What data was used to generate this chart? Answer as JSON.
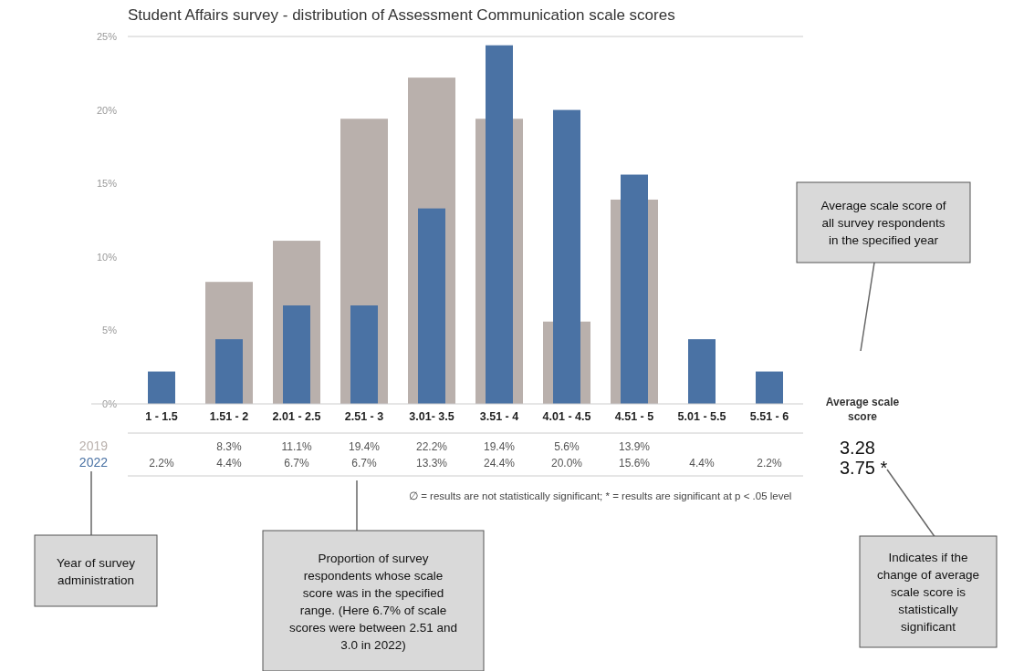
{
  "chart_data": {
    "type": "bar",
    "title": "Student Affairs survey - distribution of Assessment Communication scale scores",
    "categories": [
      "1 - 1.5",
      "1.51 - 2",
      "2.01 - 2.5",
      "2.51 - 3",
      "3.01- 3.5",
      "3.51 - 4",
      "4.01 - 4.5",
      "4.51 - 5",
      "5.01 - 5.5",
      "5.51 - 6"
    ],
    "series": [
      {
        "name": "2019",
        "color": "#b9b0ac",
        "values": [
          null,
          8.3,
          11.1,
          19.4,
          22.2,
          19.4,
          5.6,
          13.9,
          null,
          null
        ],
        "value_labels": [
          null,
          "8.3%",
          "11.1%",
          "19.4%",
          "22.2%",
          "19.4%",
          "5.6%",
          "13.9%",
          null,
          null
        ]
      },
      {
        "name": "2022",
        "color": "#4a72a4",
        "values": [
          2.2,
          4.4,
          6.7,
          6.7,
          13.3,
          24.4,
          20.0,
          15.6,
          4.4,
          2.2
        ],
        "value_labels": [
          "2.2%",
          "4.4%",
          "6.7%",
          "6.7%",
          "13.3%",
          "24.4%",
          "20.0%",
          "15.6%",
          "4.4%",
          "2.2%"
        ]
      }
    ],
    "ylim": [
      0,
      25
    ],
    "yticks": [
      {
        "value": 0,
        "label": "0%"
      },
      {
        "value": 5,
        "label": "5%"
      },
      {
        "value": 10,
        "label": "10%"
      },
      {
        "value": 15,
        "label": "15%"
      },
      {
        "value": 20,
        "label": "20%"
      },
      {
        "value": 25,
        "label": "25%"
      }
    ],
    "annotations": [
      "Average scale score",
      "3.28",
      "3.75 *",
      "∅ = results are not statistically significant;  * = results are significant at p < .05 level",
      "Average scale score of all survey respondents in the specified year",
      "Year of survey administration",
      "Proportion of survey respondents whose scale score was in the specified range.  (Here 6.7% of scale scores were between 2.51 and 3.0 in 2022)",
      "Indicates if the change of average scale score is statistically significant"
    ]
  }
}
